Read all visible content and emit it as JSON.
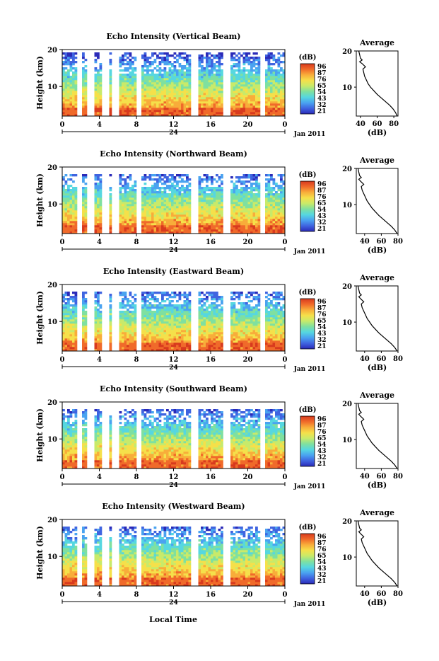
{
  "x_axis_label": "Local Time",
  "date_label": "Jan 2011",
  "colorbar": {
    "unit_label": "(dB)",
    "ticks": [
      "96",
      "87",
      "76",
      "65",
      "54",
      "43",
      "32",
      "21"
    ],
    "colors": [
      "#2a2ab8",
      "#3f64e0",
      "#4aa3f0",
      "#56d7e0",
      "#7fe0a0",
      "#c8ea6a",
      "#f5e04a",
      "#f8ad3a",
      "#f06a2a",
      "#d83a1e"
    ]
  },
  "chart_data": [
    {
      "type": "heatmap",
      "title": "Echo Intensity (Vertical Beam)",
      "ylabel": "Height (km)",
      "ylim": [
        2,
        20
      ],
      "yticks": [
        "20",
        "10"
      ],
      "xlim": [
        0,
        24
      ],
      "xticks": [
        "0",
        "4",
        "8",
        "12",
        "16",
        "20",
        "0"
      ],
      "date_tick": "24",
      "gaps_hours": [
        1.7,
        3.0,
        4.6,
        5.6,
        8.1,
        14.2,
        17.6,
        21.5
      ],
      "profile": {
        "title": "Average",
        "xlabel": "(dB)",
        "xticks": [
          "40",
          "60",
          "80"
        ],
        "xlim": [
          35,
          85
        ],
        "ylim": [
          2,
          20
        ],
        "yticks": [
          "20",
          "10"
        ],
        "points": [
          [
            84,
            2
          ],
          [
            82,
            3
          ],
          [
            79,
            4
          ],
          [
            75,
            5
          ],
          [
            70,
            6
          ],
          [
            65,
            7
          ],
          [
            60,
            8
          ],
          [
            56,
            9
          ],
          [
            52,
            10
          ],
          [
            49,
            11
          ],
          [
            47,
            12
          ],
          [
            45,
            13
          ],
          [
            44,
            14
          ],
          [
            43,
            15
          ],
          [
            46,
            15.6
          ],
          [
            42,
            16.5
          ],
          [
            39,
            17
          ],
          [
            42,
            17.5
          ],
          [
            40,
            18
          ],
          [
            39,
            19
          ],
          [
            38,
            20
          ]
        ]
      }
    },
    {
      "type": "heatmap",
      "title": "Echo Intensity (Northward Beam)",
      "ylabel": "Height (km)",
      "ylim": [
        2,
        20
      ],
      "yticks": [
        "20",
        "10"
      ],
      "xlim": [
        0,
        24
      ],
      "xticks": [
        "0",
        "4",
        "8",
        "12",
        "16",
        "20",
        "0"
      ],
      "date_tick": "24",
      "gaps_hours": [
        1.7,
        3.0,
        4.6,
        5.6,
        8.1,
        14.2,
        17.6,
        21.5
      ],
      "profile": {
        "title": "Average",
        "xlabel": "(dB)",
        "xticks": [
          "40",
          "60",
          "80"
        ],
        "xlim": [
          30,
          80
        ],
        "ylim": [
          2,
          20
        ],
        "yticks": [
          "20",
          "10"
        ],
        "points": [
          [
            79,
            2
          ],
          [
            76,
            3
          ],
          [
            72,
            4
          ],
          [
            67,
            5
          ],
          [
            62,
            6
          ],
          [
            57,
            7
          ],
          [
            53,
            8
          ],
          [
            49,
            9
          ],
          [
            46,
            10
          ],
          [
            43,
            11
          ],
          [
            41,
            12
          ],
          [
            39,
            13
          ],
          [
            37,
            14
          ],
          [
            36,
            15
          ],
          [
            39,
            15.6
          ],
          [
            35,
            16.5
          ],
          [
            33,
            17
          ],
          [
            36,
            17.5
          ],
          [
            34,
            18
          ],
          [
            33,
            19
          ],
          [
            32,
            20
          ]
        ]
      }
    },
    {
      "type": "heatmap",
      "title": "Echo Intensity (Eastward Beam)",
      "ylabel": "Height (km)",
      "ylim": [
        2,
        20
      ],
      "yticks": [
        "20",
        "10"
      ],
      "xlim": [
        0,
        24
      ],
      "xticks": [
        "0",
        "4",
        "8",
        "12",
        "16",
        "20",
        "0"
      ],
      "date_tick": "24",
      "gaps_hours": [
        1.7,
        3.0,
        4.6,
        5.6,
        8.1,
        14.2,
        17.6,
        21.5
      ],
      "profile": {
        "title": "Average",
        "xlabel": "(dB)",
        "xticks": [
          "40",
          "60",
          "80"
        ],
        "xlim": [
          30,
          80
        ],
        "ylim": [
          2,
          20
        ],
        "yticks": [
          "20",
          "10"
        ],
        "points": [
          [
            79,
            2
          ],
          [
            76,
            3
          ],
          [
            72,
            4
          ],
          [
            67,
            5
          ],
          [
            62,
            6
          ],
          [
            57,
            7
          ],
          [
            53,
            8
          ],
          [
            49,
            9
          ],
          [
            46,
            10
          ],
          [
            43,
            11
          ],
          [
            41,
            12
          ],
          [
            39,
            13
          ],
          [
            37,
            14
          ],
          [
            36,
            15
          ],
          [
            39,
            15.6
          ],
          [
            35,
            16.5
          ],
          [
            33,
            17
          ],
          [
            36,
            17.5
          ],
          [
            34,
            18
          ],
          [
            33,
            19
          ],
          [
            32,
            20
          ]
        ]
      }
    },
    {
      "type": "heatmap",
      "title": "Echo Intensity (Southward Beam)",
      "ylabel": "Height (km)",
      "ylim": [
        2,
        20
      ],
      "yticks": [
        "20",
        "10"
      ],
      "xlim": [
        0,
        24
      ],
      "xticks": [
        "0",
        "4",
        "8",
        "12",
        "16",
        "20",
        "0"
      ],
      "date_tick": "24",
      "gaps_hours": [
        1.7,
        3.0,
        4.6,
        5.6,
        8.1,
        14.2,
        17.6,
        21.5
      ],
      "profile": {
        "title": "Average",
        "xlabel": "(dB)",
        "xticks": [
          "40",
          "60",
          "80"
        ],
        "xlim": [
          30,
          80
        ],
        "ylim": [
          2,
          20
        ],
        "yticks": [
          "20",
          "10"
        ],
        "points": [
          [
            79,
            2
          ],
          [
            76,
            3
          ],
          [
            72,
            4
          ],
          [
            67,
            5
          ],
          [
            62,
            6
          ],
          [
            57,
            7
          ],
          [
            53,
            8
          ],
          [
            49,
            9
          ],
          [
            46,
            10
          ],
          [
            43,
            11
          ],
          [
            41,
            12
          ],
          [
            39,
            13
          ],
          [
            37,
            14
          ],
          [
            36,
            15
          ],
          [
            39,
            15.6
          ],
          [
            35,
            16.5
          ],
          [
            33,
            17
          ],
          [
            36,
            17.5
          ],
          [
            34,
            18
          ],
          [
            33,
            19
          ],
          [
            32,
            20
          ]
        ]
      }
    },
    {
      "type": "heatmap",
      "title": "Echo Intensity (Westward Beam)",
      "ylabel": "Height (km)",
      "ylim": [
        2,
        20
      ],
      "yticks": [
        "20",
        "10"
      ],
      "xlim": [
        0,
        24
      ],
      "xticks": [
        "0",
        "4",
        "8",
        "12",
        "16",
        "20",
        "0"
      ],
      "date_tick": "24",
      "gaps_hours": [
        1.7,
        3.0,
        4.6,
        5.6,
        8.1,
        14.2,
        17.6,
        21.5
      ],
      "profile": {
        "title": "Average",
        "xlabel": "(dB)",
        "xticks": [
          "40",
          "60",
          "80"
        ],
        "xlim": [
          30,
          80
        ],
        "ylim": [
          2,
          20
        ],
        "yticks": [
          "20",
          "10"
        ],
        "points": [
          [
            79,
            2
          ],
          [
            76,
            3
          ],
          [
            72,
            4
          ],
          [
            67,
            5
          ],
          [
            62,
            6
          ],
          [
            57,
            7
          ],
          [
            53,
            8
          ],
          [
            49,
            9
          ],
          [
            46,
            10
          ],
          [
            43,
            11
          ],
          [
            41,
            12
          ],
          [
            39,
            13
          ],
          [
            37,
            14
          ],
          [
            36,
            15
          ],
          [
            39,
            15.6
          ],
          [
            35,
            16.5
          ],
          [
            33,
            17
          ],
          [
            36,
            17.5
          ],
          [
            34,
            18
          ],
          [
            33,
            19
          ],
          [
            32,
            20
          ]
        ]
      }
    }
  ]
}
